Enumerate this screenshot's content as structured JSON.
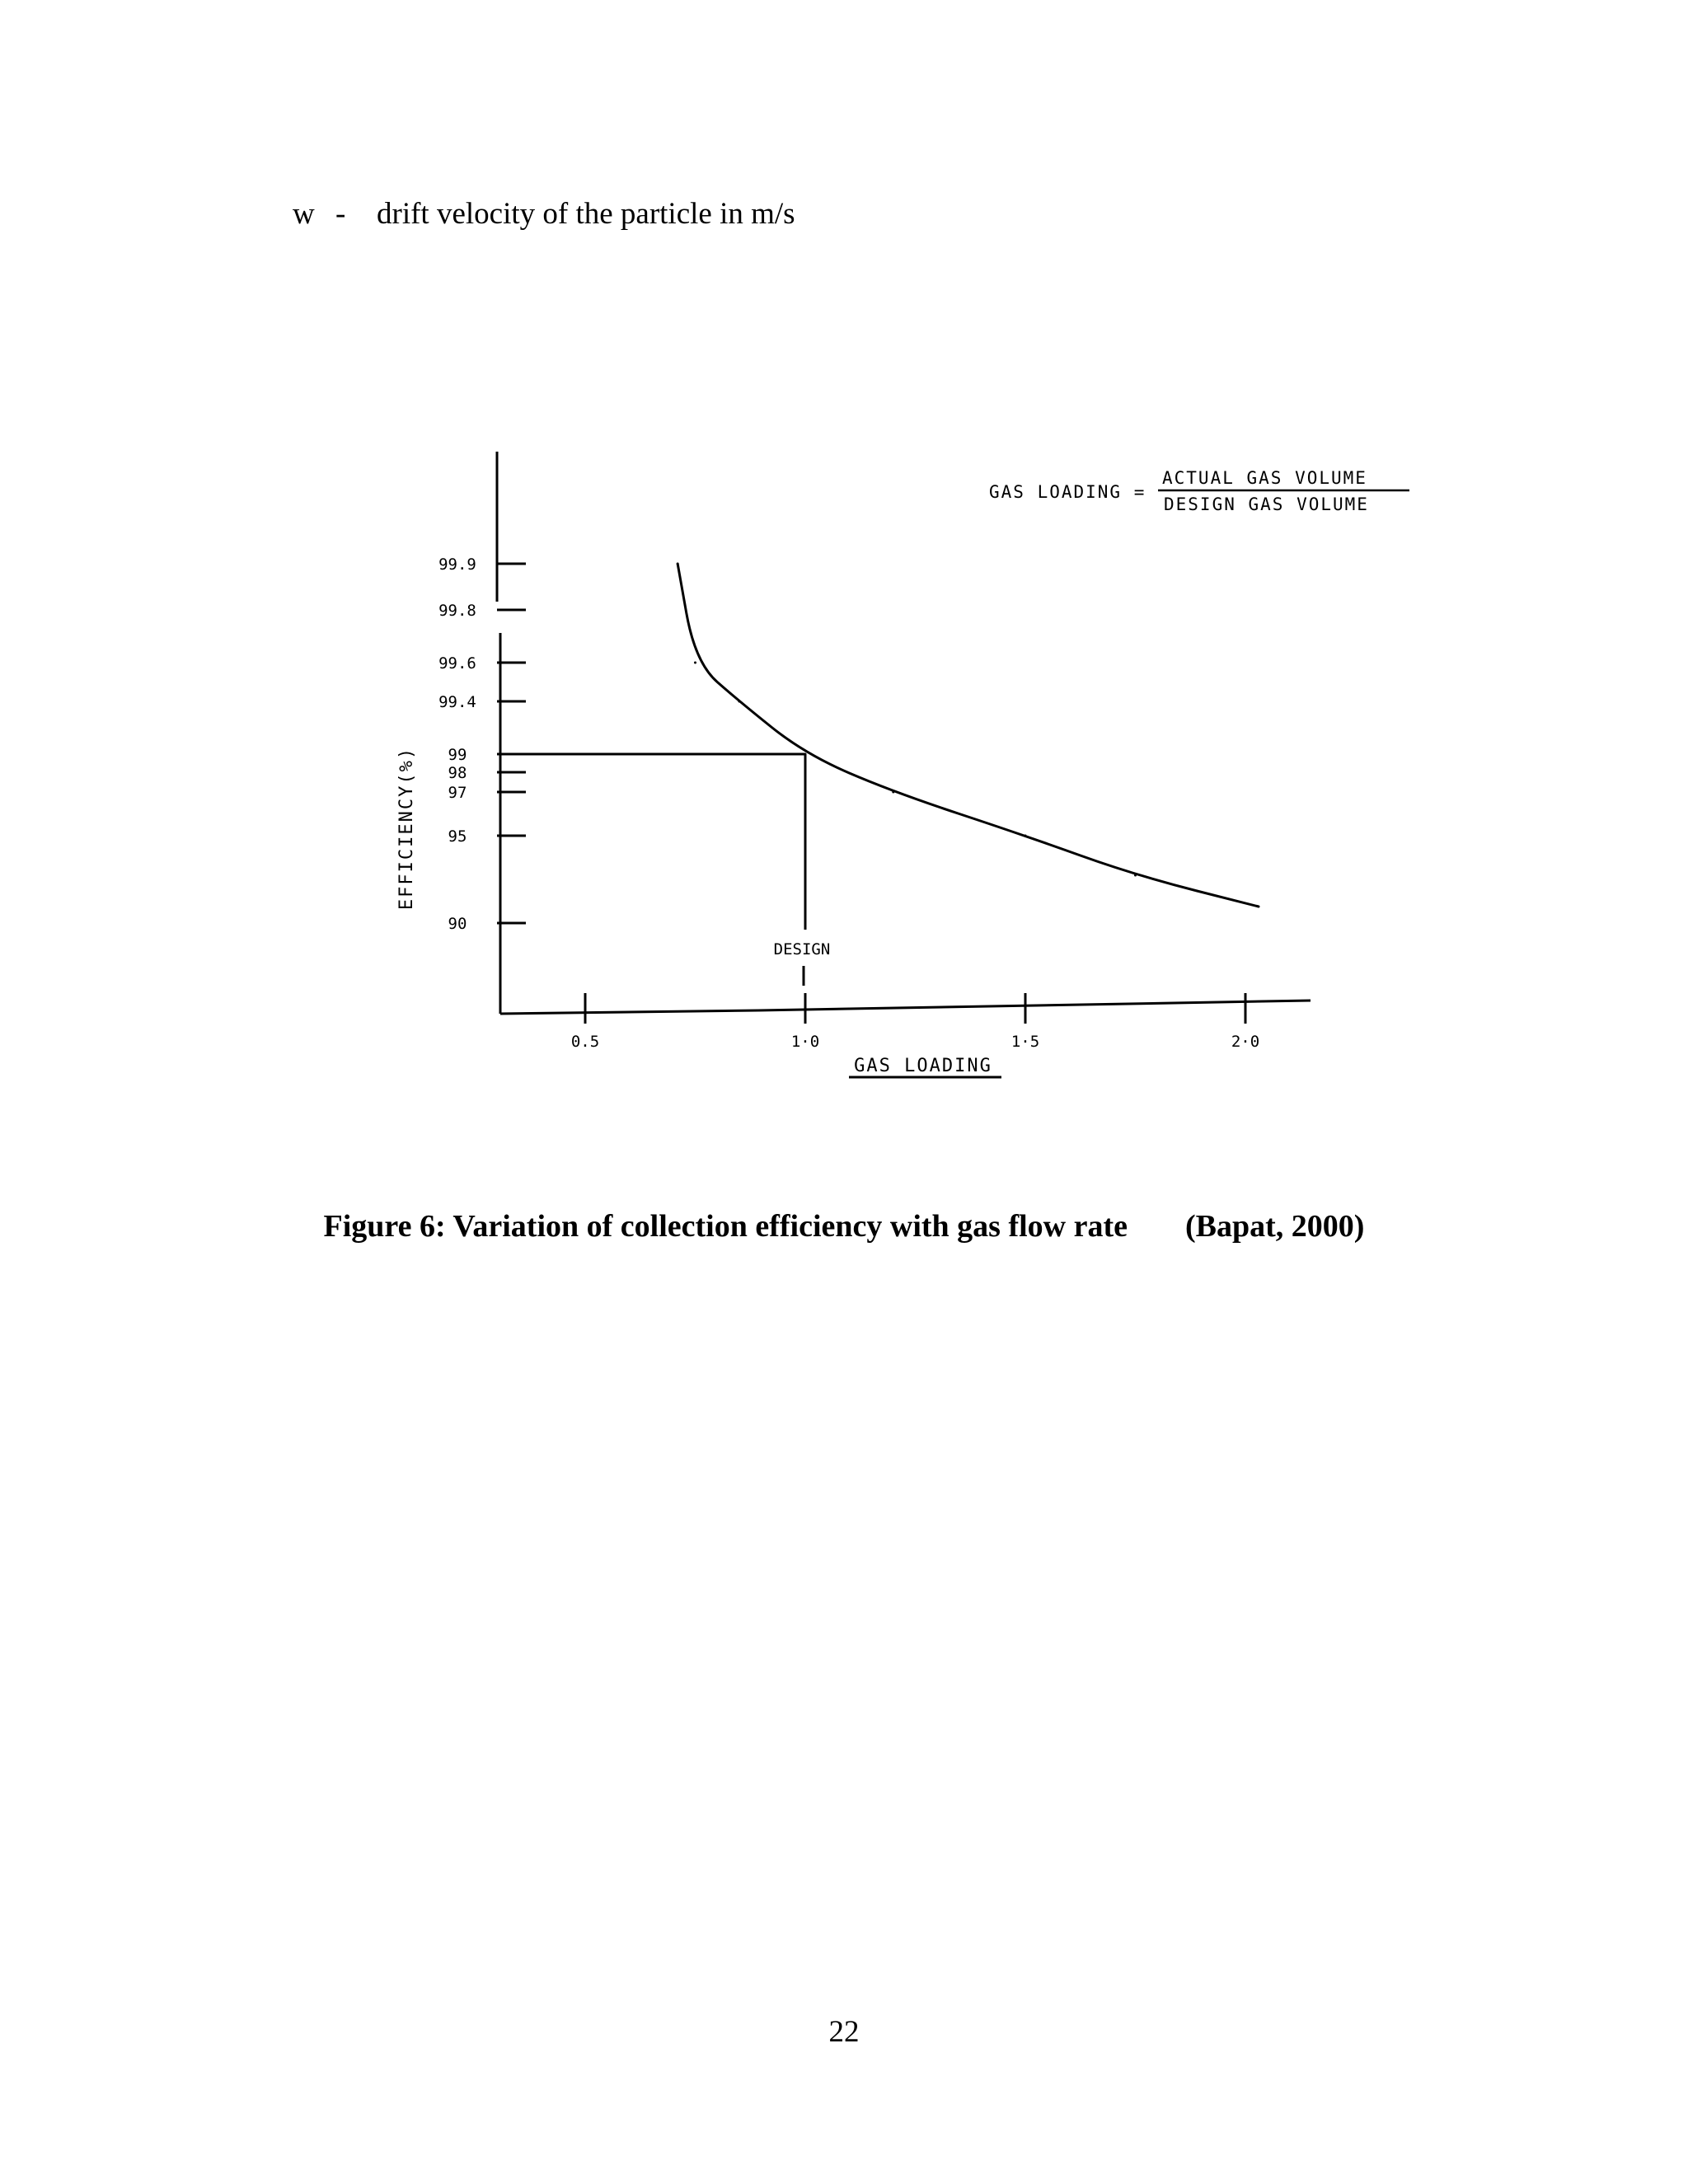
{
  "definition": {
    "symbol": "w",
    "dash": "-",
    "text": "drift velocity of the particle in m/s"
  },
  "chart_data": {
    "type": "line",
    "title": "",
    "xlabel": "GAS LOADING",
    "ylabel": "EFFICIENCY(%)",
    "formula": {
      "lhs": "GAS LOADING =",
      "numerator": "ACTUAL GAS VOLUME",
      "denominator": "DESIGN GAS VOLUME"
    },
    "x_ticks": [
      {
        "value": 0.5,
        "label": "0.5"
      },
      {
        "value": 1.0,
        "label": "1·0"
      },
      {
        "value": 1.5,
        "label": "1·5"
      },
      {
        "value": 2.0,
        "label": "2·0"
      }
    ],
    "y_ticks": [
      "99.9",
      "99.8",
      "99.6",
      "99.4",
      "99",
      "98",
      "97",
      "95",
      "90"
    ],
    "xlim": [
      0.3,
      2.15
    ],
    "series": [
      {
        "points": [
          {
            "x": 0.71,
            "y": "99.9"
          },
          {
            "x": 0.75,
            "y": "99.6"
          },
          {
            "x": 0.85,
            "y": "99.4"
          },
          {
            "x": 1.0,
            "y": "99"
          },
          {
            "x": 1.2,
            "y": "97"
          },
          {
            "x": 1.5,
            "y": "95"
          },
          {
            "x": 1.75,
            "y": "93"
          },
          {
            "x": 2.03,
            "y": "91"
          }
        ]
      }
    ],
    "annotation": {
      "label": "DESIGN",
      "x": 1.0,
      "y": "99"
    }
  },
  "caption": {
    "figure": "Figure 6: Variation of collection efficiency with gas flow rate",
    "source": "(Bapat, 2000)"
  },
  "page_number": "22"
}
